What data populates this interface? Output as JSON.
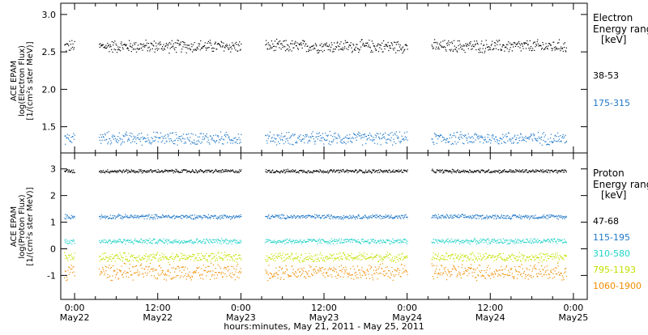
{
  "x_axis": {
    "title": "hours:minutes, May 21, 2011 - May 25, 2011",
    "ticks": [
      {
        "hours": 0,
        "time": "0:00",
        "date": "May22"
      },
      {
        "hours": 12,
        "time": "12:00",
        "date": "May22"
      },
      {
        "hours": 24,
        "time": "0:00",
        "date": "May23"
      },
      {
        "hours": 36,
        "time": "12:00",
        "date": "May23"
      },
      {
        "hours": 48,
        "time": "0:00",
        "date": "May24"
      },
      {
        "hours": 60,
        "time": "12:00",
        "date": "May24"
      },
      {
        "hours": 72,
        "time": "0:00",
        "date": "May25"
      }
    ],
    "range_hours": [
      -2,
      74
    ]
  },
  "panels": {
    "electron": {
      "ylabel_1": "ACE EPAM",
      "ylabel_2": "log(Electron Flux)",
      "ylabel_3": "[1/(cm²s ster MeV)]",
      "legend_title_1": "Electron",
      "legend_title_2": "Energy ranges",
      "legend_unit": "[keV]"
    },
    "proton": {
      "ylabel_1": "ACE EPAM",
      "ylabel_2": "log(Proton Flux)",
      "ylabel_3": "[1/(cm²s ster MeV)]",
      "legend_title_1": "Proton",
      "legend_title_2": "Energy ranges",
      "legend_unit": "[keV]"
    }
  },
  "chart_data": [
    {
      "type": "scatter",
      "panel": "electron",
      "title": "",
      "ylabel": "log(Electron Flux) [1/(cm²s ster MeV)]",
      "xlabel": "",
      "ylim": [
        1.15,
        3.15
      ],
      "y_ticks": [
        1.5,
        2.0,
        2.5,
        3.0
      ],
      "y_tick_labels": [
        "1.5",
        "2.0",
        "2.5",
        "3.0"
      ],
      "data_segments_hours": [
        [
          -1.5,
          0
        ],
        [
          3.5,
          24
        ],
        [
          27.5,
          48
        ],
        [
          51.5,
          71
        ]
      ],
      "series": [
        {
          "name": "38-53",
          "color": "#000000",
          "level": 2.58,
          "spread": 0.1
        },
        {
          "name": "175-315",
          "color": "#1f77c7",
          "level": 1.35,
          "spread": 0.1
        }
      ]
    },
    {
      "type": "scatter",
      "panel": "proton",
      "title": "",
      "ylabel": "log(Proton Flux) [1/(cm²s ster MeV)]",
      "xlabel": "",
      "ylim": [
        -1.9,
        3.6
      ],
      "y_ticks": [
        -1,
        0,
        1,
        2,
        3
      ],
      "y_tick_labels": [
        "-1",
        "0",
        "1",
        "2",
        "3"
      ],
      "data_segments_hours": [
        [
          -1.5,
          0
        ],
        [
          3.5,
          24
        ],
        [
          27.5,
          48
        ],
        [
          51.5,
          71
        ]
      ],
      "series": [
        {
          "name": "47-68",
          "color": "#000000",
          "level": 2.93,
          "spread": 0.08
        },
        {
          "name": "115-195",
          "color": "#1f77c7",
          "level": 1.22,
          "spread": 0.1
        },
        {
          "name": "310-580",
          "color": "#22d3c8",
          "level": 0.3,
          "spread": 0.12
        },
        {
          "name": "795-1193",
          "color": "#c4e000",
          "level": -0.3,
          "spread": 0.2
        },
        {
          "name": "1060-1900",
          "color": "#f08c00",
          "level": -0.85,
          "spread": 0.35
        }
      ]
    }
  ]
}
